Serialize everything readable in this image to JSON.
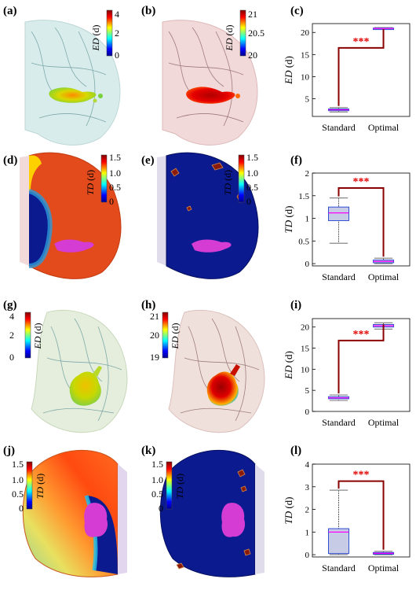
{
  "panels": {
    "a": "(a)",
    "b": "(b)",
    "c": "(c)",
    "d": "(d)",
    "e": "(e)",
    "f": "(f)",
    "g": "(g)",
    "h": "(h)",
    "i": "(i)",
    "j": "(j)",
    "k": "(k)",
    "l": "(l)"
  },
  "colorbars": {
    "a": {
      "title": "ED",
      "unit": "(d)",
      "ticks": [
        "4",
        "2",
        "0"
      ]
    },
    "b": {
      "title": "ED",
      "unit": "(d)",
      "ticks": [
        "21",
        "20.5",
        "20"
      ]
    },
    "d": {
      "title": "TD",
      "unit": "(d)",
      "ticks": [
        "1.5",
        "1.0",
        "0.5",
        "0"
      ]
    },
    "e": {
      "title": "TD",
      "unit": "(d)",
      "ticks": [
        "1.5",
        "1.0",
        "0.5",
        "0"
      ]
    },
    "g": {
      "title": "ED",
      "unit": "(d)",
      "ticks": [
        "4",
        "2",
        "0"
      ]
    },
    "h": {
      "title": "ED",
      "unit": "(d)",
      "ticks": [
        "21",
        "20",
        "19"
      ]
    },
    "j": {
      "title": "TD",
      "unit": "(d)",
      "ticks": [
        "1.5",
        "1.0",
        "0.5",
        "0"
      ]
    },
    "k": {
      "title": "TD",
      "unit": "(d)",
      "ticks": [
        "1.5",
        "1.0",
        "0.5",
        "0"
      ]
    }
  },
  "colors": {
    "jet": [
      "#00008f",
      "#0000ff",
      "#00ffff",
      "#ffff00",
      "#ff0000",
      "#800000"
    ],
    "significance_bracket": "#8b0000",
    "significance_text": "#e00000",
    "box_edge": "#1f3fd0",
    "median": "#ff00ff",
    "tumor": "#d43cd4",
    "low_td": "#0b1a8f"
  },
  "significance": "***",
  "chart_data": [
    {
      "panel": "c",
      "type": "box",
      "categories": [
        "Standard",
        "Optimal"
      ],
      "ylabel": "ED",
      "yunit": "(d)",
      "ylim": [
        1,
        22
      ],
      "yticks": [
        5,
        10,
        15,
        20
      ],
      "ytick_labels": [
        "5",
        "10",
        "15",
        "20"
      ],
      "boxes": [
        {
          "q1": 2.3,
          "median": 2.5,
          "q3": 2.7,
          "whisker_low": 2.0,
          "whisker_high": 3.0
        },
        {
          "q1": 20.8,
          "median": 20.9,
          "q3": 21.0,
          "whisker_low": 20.7,
          "whisker_high": 21.1
        }
      ],
      "bracket_top": 16.5
    },
    {
      "panel": "f",
      "type": "box",
      "categories": [
        "Standard",
        "Optimal"
      ],
      "ylabel": "TD",
      "yunit": "(d)",
      "ylim": [
        -0.05,
        2
      ],
      "yticks": [
        0,
        0.5,
        1,
        1.5,
        2
      ],
      "ytick_labels": [
        "0",
        "0.5",
        "1",
        "1.5",
        "2"
      ],
      "boxes": [
        {
          "q1": 0.95,
          "median": 1.12,
          "q3": 1.25,
          "whisker_low": 0.45,
          "whisker_high": 1.45
        },
        {
          "q1": 0.02,
          "median": 0.05,
          "q3": 0.08,
          "whisker_low": 0.0,
          "whisker_high": 0.12
        }
      ],
      "bracket_top": 1.67
    },
    {
      "panel": "i",
      "type": "box",
      "categories": [
        "Standard",
        "Optimal"
      ],
      "ylabel": "ED",
      "yunit": "(d)",
      "ylim": [
        0,
        22
      ],
      "yticks": [
        0,
        5,
        10,
        15,
        20
      ],
      "ytick_labels": [
        "0",
        "5",
        "10",
        "15",
        "20"
      ],
      "boxes": [
        {
          "q1": 3.0,
          "median": 3.2,
          "q3": 3.5,
          "whisker_low": 2.6,
          "whisker_high": 3.9
        },
        {
          "q1": 20.0,
          "median": 20.3,
          "q3": 20.6,
          "whisker_low": 19.5,
          "whisker_high": 21.0
        }
      ],
      "bracket_top": 16.8
    },
    {
      "panel": "l",
      "type": "box",
      "categories": [
        "Standard",
        "Optimal"
      ],
      "ylabel": "TD",
      "yunit": "(d)",
      "ylim": [
        -0.1,
        4
      ],
      "yticks": [
        0,
        1,
        2,
        3,
        4
      ],
      "ytick_labels": [
        "0",
        "1",
        "2",
        "3",
        "4"
      ],
      "boxes": [
        {
          "q1": 0.05,
          "median": 1.0,
          "q3": 1.15,
          "whisker_low": 0.0,
          "whisker_high": 2.85
        },
        {
          "q1": 0.02,
          "median": 0.06,
          "q3": 0.1,
          "whisker_low": 0.0,
          "whisker_high": 0.15
        }
      ],
      "bracket_top": 3.25
    }
  ]
}
